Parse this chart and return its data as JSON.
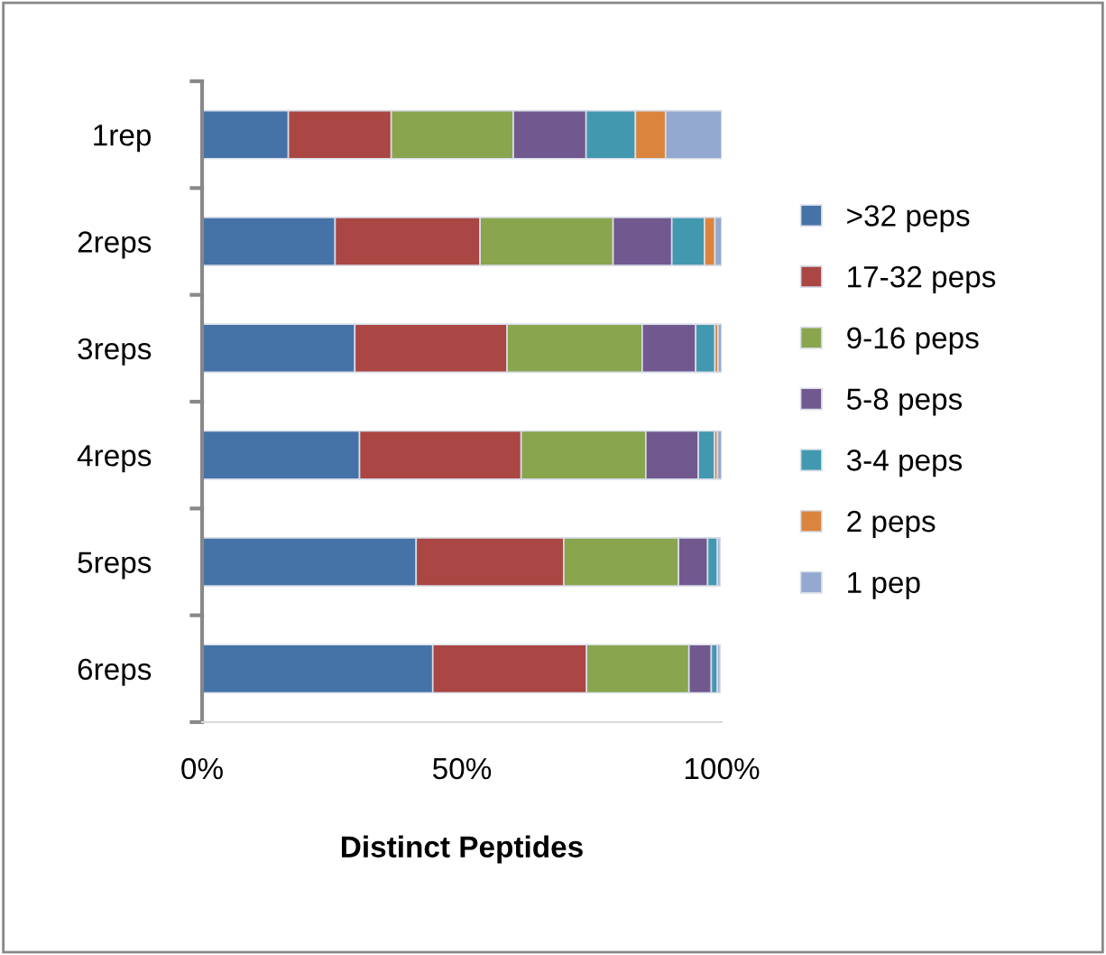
{
  "chart_data": {
    "type": "bar",
    "orientation": "horizontal",
    "stacked": true,
    "xlabel": "Distinct Peptides",
    "categories": [
      "1rep",
      "2reps",
      "3reps",
      "4reps",
      "5reps",
      "6reps"
    ],
    "series": [
      {
        "name": ">32 peps",
        "color": "#4572a7",
        "values": [
          16.6,
          25.6,
          29.4,
          30.3,
          41.2,
          44.4
        ]
      },
      {
        "name": "17-32 peps",
        "color": "#aa4643",
        "values": [
          19.8,
          27.9,
          29.3,
          31.1,
          28.4,
          29.6
        ]
      },
      {
        "name": "9-16 peps",
        "color": "#89a54e",
        "values": [
          23.5,
          25.6,
          26.0,
          24.0,
          22.1,
          19.7
        ]
      },
      {
        "name": "5-8 peps",
        "color": "#71588f",
        "values": [
          14.0,
          11.3,
          10.3,
          10.1,
          5.6,
          4.3
        ]
      },
      {
        "name": "3-4 peps",
        "color": "#4198af",
        "values": [
          9.5,
          6.3,
          3.7,
          3.1,
          1.9,
          1.2
        ]
      },
      {
        "name": "2 peps",
        "color": "#db843d",
        "values": [
          5.8,
          2.0,
          0.6,
          0.6,
          null,
          null
        ]
      },
      {
        "name": "1 pep",
        "color": "#93a9cf",
        "values": [
          10.8,
          1.3,
          0.7,
          0.8,
          0.5,
          0.5
        ]
      }
    ],
    "xlim": [
      0,
      100
    ],
    "xticks": [
      {
        "value": 0,
        "label": "0%"
      },
      {
        "value": 50,
        "label": "50%"
      },
      {
        "value": 100,
        "label": "100%"
      }
    ],
    "grid": false,
    "legend": "right"
  }
}
